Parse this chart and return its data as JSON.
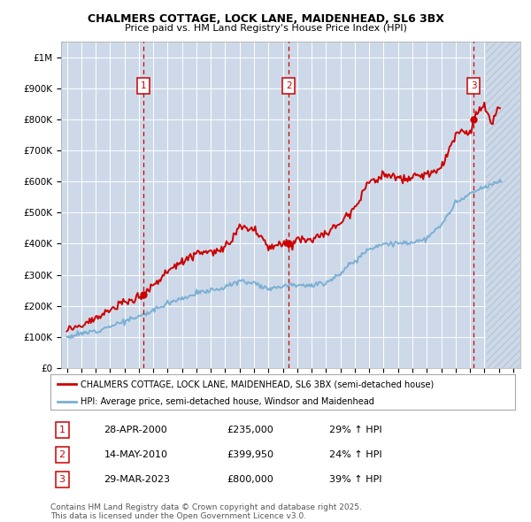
{
  "title": "CHALMERS COTTAGE, LOCK LANE, MAIDENHEAD, SL6 3BX",
  "subtitle": "Price paid vs. HM Land Registry's House Price Index (HPI)",
  "background_color": "#cdd9e8",
  "plot_bg_color": "#cdd9e8",
  "red_line_color": "#cc0000",
  "blue_line_color": "#7bafd4",
  "grid_color": "#ffffff",
  "sale_prices": [
    235000,
    399950,
    800000
  ],
  "sale_labels": [
    "1",
    "2",
    "3"
  ],
  "sale_years": [
    2000.33,
    2010.42,
    2023.25
  ],
  "sale_info": [
    {
      "label": "1",
      "date": "28-APR-2000",
      "price": "£235,000",
      "hpi": "29% ↑ HPI"
    },
    {
      "label": "2",
      "date": "14-MAY-2010",
      "price": "£399,950",
      "hpi": "24% ↑ HPI"
    },
    {
      "label": "3",
      "date": "29-MAR-2023",
      "price": "£800,000",
      "hpi": "39% ↑ HPI"
    }
  ],
  "legend_red": "CHALMERS COTTAGE, LOCK LANE, MAIDENHEAD, SL6 3BX (semi-detached house)",
  "legend_blue": "HPI: Average price, semi-detached house, Windsor and Maidenhead",
  "footer": "Contains HM Land Registry data © Crown copyright and database right 2025.\nThis data is licensed under the Open Government Licence v3.0.",
  "ylim": [
    0,
    1050000
  ],
  "yticks": [
    0,
    100000,
    200000,
    300000,
    400000,
    500000,
    600000,
    700000,
    800000,
    900000,
    1000000
  ],
  "ytick_labels": [
    "£0",
    "£100K",
    "£200K",
    "£300K",
    "£400K",
    "£500K",
    "£600K",
    "£700K",
    "£800K",
    "£900K",
    "£1M"
  ],
  "xlim_start": 1994.6,
  "xlim_end": 2026.5,
  "xticks": [
    1995,
    1996,
    1997,
    1998,
    1999,
    2000,
    2001,
    2002,
    2003,
    2004,
    2005,
    2006,
    2007,
    2008,
    2009,
    2010,
    2011,
    2012,
    2013,
    2014,
    2015,
    2016,
    2017,
    2018,
    2019,
    2020,
    2021,
    2022,
    2023,
    2024,
    2025,
    2026
  ],
  "hpi_anchors_years": [
    1995,
    1996,
    1997,
    1998,
    1999,
    2000,
    2001,
    2002,
    2003,
    2004,
    2005,
    2006,
    2007,
    2008,
    2009,
    2010,
    2011,
    2012,
    2013,
    2014,
    2015,
    2016,
    2017,
    2018,
    2019,
    2020,
    2021,
    2022,
    2023,
    2024,
    2025
  ],
  "hpi_anchors_vals": [
    100000,
    110000,
    120000,
    135000,
    150000,
    165000,
    185000,
    210000,
    225000,
    240000,
    250000,
    260000,
    280000,
    275000,
    255000,
    265000,
    270000,
    265000,
    275000,
    305000,
    345000,
    385000,
    400000,
    400000,
    405000,
    415000,
    460000,
    530000,
    560000,
    580000,
    600000
  ],
  "red_anchors_years": [
    1995.0,
    1996.0,
    1997.0,
    1998.0,
    1999.0,
    2000.0,
    2000.33,
    2001.0,
    2002.0,
    2003.0,
    2004.0,
    2005.0,
    2006.0,
    2007.0,
    2008.0,
    2008.5,
    2009.0,
    2010.0,
    2010.42,
    2011.0,
    2012.0,
    2013.0,
    2014.0,
    2015.0,
    2016.0,
    2017.0,
    2018.0,
    2019.0,
    2020.0,
    2021.0,
    2022.0,
    2022.5,
    2023.0,
    2023.25,
    2023.5,
    2024.0,
    2024.5,
    2025.0
  ],
  "red_anchors_vals": [
    125000,
    140000,
    160000,
    185000,
    210000,
    230000,
    235000,
    265000,
    310000,
    345000,
    370000,
    375000,
    380000,
    455000,
    445000,
    420000,
    385000,
    400000,
    399950,
    415000,
    415000,
    430000,
    470000,
    520000,
    600000,
    620000,
    610000,
    610000,
    625000,
    640000,
    750000,
    765000,
    755000,
    800000,
    825000,
    845000,
    780000,
    835000
  ],
  "hatch_start": 2024.08
}
